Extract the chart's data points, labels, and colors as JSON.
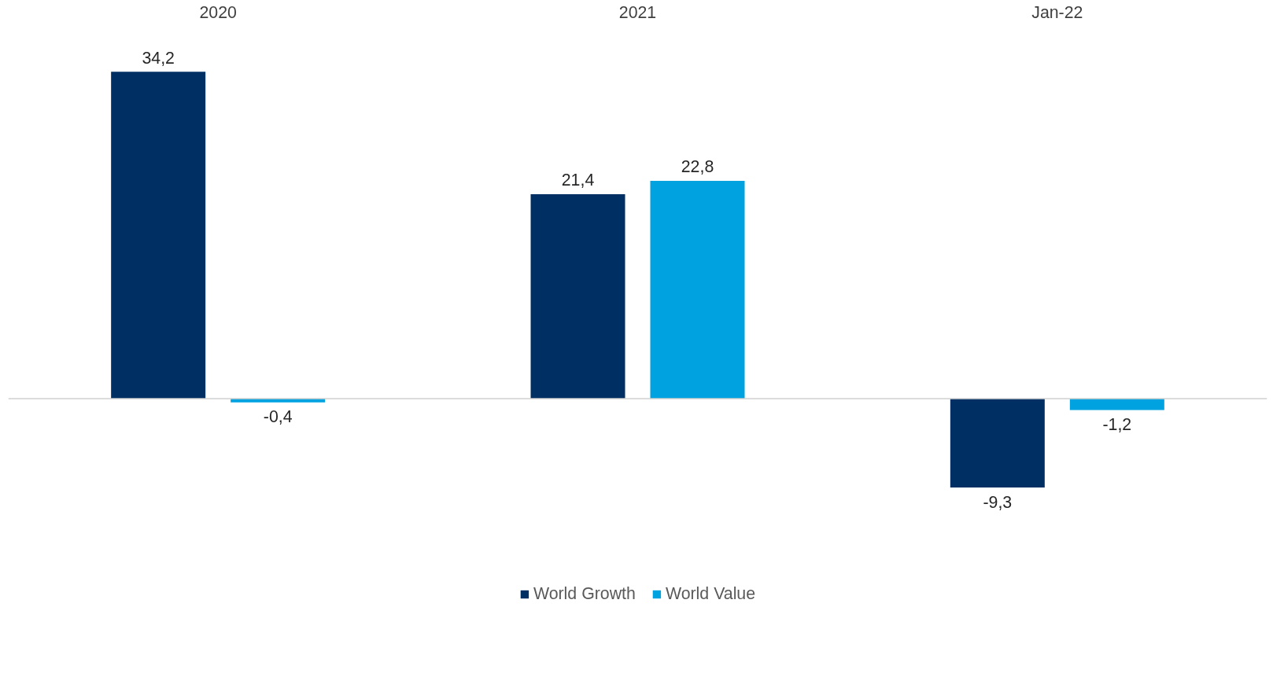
{
  "chart_data": {
    "type": "bar",
    "categories": [
      "2020",
      "2021",
      "Jan-22"
    ],
    "series": [
      {
        "name": "World Growth",
        "color": "#003063",
        "values": [
          34.2,
          21.4,
          -9.3
        ],
        "value_labels": [
          "34,2",
          "21,4",
          "-9,3"
        ]
      },
      {
        "name": "World Value",
        "color": "#00a3e0",
        "values": [
          -0.4,
          22.8,
          -1.2
        ],
        "value_labels": [
          "-0,4",
          "22,8",
          "-1,2"
        ]
      }
    ],
    "tick_labels": "x",
    "legend": "bottom",
    "grid": false
  }
}
